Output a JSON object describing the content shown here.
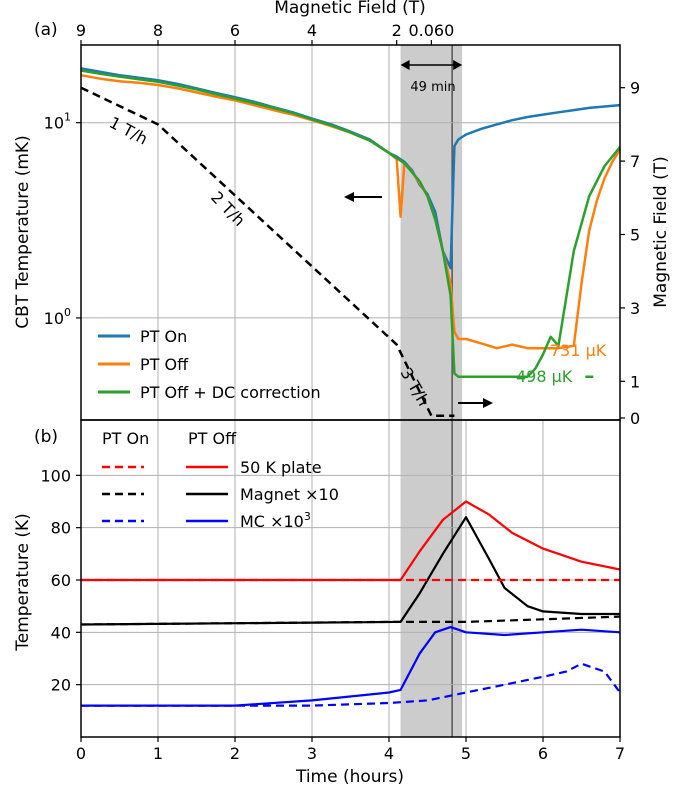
{
  "chart_data": [
    {
      "panel_label": "(a)",
      "type": "line",
      "xlabel": "",
      "ylabel": "CBT Temperature (mK)",
      "ylabel_right": "Magnetic Field (T)",
      "xlabel_top": "Magnetic Field (T)",
      "yscale": "log",
      "xlim": [
        0,
        7
      ],
      "ylim": [
        0.3,
        25
      ],
      "ylim_right": [
        0,
        10
      ],
      "grid": true,
      "legend_position": "lower-left",
      "x_ticks_top": [
        {
          "x": 0.0,
          "label": "9"
        },
        {
          "x": 1.0,
          "label": "8"
        },
        {
          "x": 2.0,
          "label": "6"
        },
        {
          "x": 3.0,
          "label": "4"
        },
        {
          "x": 4.1,
          "label": "2"
        },
        {
          "x": 4.55,
          "label": "0.060"
        }
      ],
      "y_ticks_left": [
        {
          "v": 10,
          "base": "10",
          "exp": "1"
        },
        {
          "v": 1,
          "base": "10",
          "exp": "0"
        }
      ],
      "y_ticks_right": [
        "0",
        "1",
        "3",
        "5",
        "7",
        "9"
      ],
      "series": [
        {
          "name": "PT On",
          "color": "#1f77b4",
          "x": [
            0,
            0.25,
            0.5,
            0.75,
            1.0,
            1.25,
            1.5,
            1.75,
            2.0,
            2.25,
            2.5,
            2.75,
            3.0,
            3.25,
            3.5,
            3.75,
            4.0,
            4.1,
            4.2,
            4.3,
            4.4,
            4.5,
            4.6,
            4.7,
            4.8,
            4.85,
            4.9,
            5.0,
            5.2,
            5.4,
            5.6,
            5.8,
            6.0,
            6.2,
            6.4,
            6.6,
            6.8,
            7.0
          ],
          "y": [
            19,
            18.2,
            17.5,
            17.0,
            16.5,
            15.8,
            15.0,
            14.2,
            13.5,
            12.8,
            12.0,
            11.3,
            10.5,
            9.8,
            9.0,
            8.2,
            7.0,
            6.7,
            6.3,
            5.7,
            4.8,
            4.3,
            3.5,
            2.2,
            1.8,
            7.6,
            8.2,
            8.7,
            9.3,
            9.8,
            10.3,
            10.7,
            11.0,
            11.3,
            11.6,
            11.9,
            12.1,
            12.3
          ]
        },
        {
          "name": "PT Off",
          "color": "#ff7f0e",
          "x": [
            0,
            0.25,
            0.5,
            0.75,
            1.0,
            1.25,
            1.5,
            1.75,
            2.0,
            2.25,
            2.5,
            2.75,
            3.0,
            3.25,
            3.5,
            3.75,
            4.0,
            4.1,
            4.15,
            4.2,
            4.25,
            4.3,
            4.4,
            4.5,
            4.6,
            4.7,
            4.8,
            4.85,
            4.9,
            5.0,
            5.2,
            5.4,
            5.6,
            5.8,
            6.0,
            6.2,
            6.3,
            6.4,
            6.5,
            6.6,
            6.7,
            6.8,
            6.9,
            7.0
          ],
          "y": [
            17.5,
            16.8,
            16.3,
            16.0,
            15.6,
            15.0,
            14.3,
            13.6,
            13.0,
            12.3,
            11.6,
            11.0,
            10.3,
            9.6,
            8.9,
            8.1,
            7.0,
            6.5,
            3.3,
            6.2,
            5.9,
            5.6,
            4.9,
            4.2,
            3.2,
            2.2,
            1.5,
            0.85,
            0.78,
            0.78,
            0.74,
            0.7,
            0.73,
            0.7,
            0.7,
            0.7,
            0.71,
            0.72,
            1.5,
            2.8,
            4.0,
            5.2,
            6.3,
            7.3
          ]
        },
        {
          "name": "PT Off + DC correction",
          "color": "#2ca02c",
          "x": [
            0,
            0.25,
            0.5,
            0.75,
            1.0,
            1.25,
            1.5,
            1.75,
            2.0,
            2.25,
            2.5,
            2.75,
            3.0,
            3.25,
            3.5,
            3.75,
            4.0,
            4.2,
            4.4,
            4.5,
            4.6,
            4.7,
            4.8,
            4.85,
            4.9,
            5.0,
            5.2,
            5.4,
            5.6,
            5.8,
            5.9,
            6.0,
            6.1,
            6.2,
            6.4,
            6.6,
            6.8,
            7.0
          ],
          "y": [
            18.5,
            17.8,
            17.2,
            16.7,
            16.2,
            15.5,
            14.8,
            14.0,
            13.3,
            12.6,
            11.9,
            11.2,
            10.4,
            9.7,
            8.9,
            8.1,
            7.0,
            6.2,
            5.0,
            4.2,
            3.2,
            2.2,
            1.3,
            0.52,
            0.5,
            0.5,
            0.5,
            0.5,
            0.5,
            0.5,
            0.55,
            0.65,
            0.8,
            0.72,
            2.2,
            4.2,
            6.0,
            7.5
          ]
        },
        {
          "name": "Magnetic field",
          "axis": "right",
          "color": "#000000",
          "x": [
            0,
            1.0,
            4.1,
            4.55,
            4.85
          ],
          "y": [
            9,
            8,
            2,
            0.06,
            0.06
          ]
        }
      ],
      "annotations": {
        "ramp_1": "1 T/h",
        "ramp_2": "2 T/h",
        "ramp_3": "3 T/h",
        "duration": "49 min",
        "final_pt_off": "731 µK",
        "final_dc": "498 µK"
      }
    },
    {
      "panel_label": "(b)",
      "type": "line",
      "xlabel": "Time (hours)",
      "ylabel": "Temperature (K)",
      "xlim": [
        0,
        7
      ],
      "ylim": [
        0,
        120
      ],
      "grid": true,
      "x_ticks": [
        "0",
        "1",
        "2",
        "3",
        "4",
        "5",
        "6",
        "7"
      ],
      "y_ticks": [
        "20",
        "40",
        "60",
        "80",
        "100"
      ],
      "legend_header_on": "PT On",
      "legend_header_off": "PT Off",
      "legend_position": "upper-left",
      "series": [
        {
          "name": "50 K plate",
          "color": "#ff0000",
          "dashed": false,
          "x": [
            0,
            4.15,
            4.4,
            4.7,
            5.0,
            5.3,
            5.6,
            6.0,
            6.5,
            7.0
          ],
          "y": [
            60,
            60,
            71,
            83,
            90,
            85,
            78,
            72,
            67,
            64
          ]
        },
        {
          "name": "Magnet ×10",
          "color": "#000000",
          "dashed": false,
          "x": [
            0,
            4.15,
            4.4,
            4.7,
            5.0,
            5.3,
            5.5,
            5.8,
            6.0,
            6.5,
            7.0
          ],
          "y": [
            43,
            44,
            55,
            70,
            84,
            68,
            57,
            50,
            48,
            47,
            47
          ]
        },
        {
          "name": "MC ×10",
          "color": "#0000ff",
          "dashed": false,
          "x": [
            0,
            1,
            2,
            3,
            4,
            4.15,
            4.4,
            4.6,
            4.8,
            5.0,
            5.5,
            6.0,
            6.5,
            7.0
          ],
          "y": [
            12,
            12,
            12,
            14,
            17,
            18,
            32,
            40,
            42,
            40,
            39,
            40,
            41,
            40
          ]
        },
        {
          "name": "50 K plate",
          "color": "#ff0000",
          "dashed": true,
          "x": [
            0,
            7
          ],
          "y": [
            60,
            60
          ]
        },
        {
          "name": "Magnet ×10",
          "color": "#000000",
          "dashed": true,
          "x": [
            0,
            4,
            5,
            6,
            7
          ],
          "y": [
            43,
            44,
            44,
            45,
            46
          ]
        },
        {
          "name": "MC ×10",
          "color": "#0000ff",
          "dashed": true,
          "x": [
            0,
            1,
            2,
            3,
            4,
            4.5,
            5,
            5.5,
            6,
            6.3,
            6.5,
            6.8,
            7.0
          ],
          "y": [
            12,
            12,
            12,
            12,
            13,
            14,
            17,
            20,
            23,
            25,
            28,
            25,
            17
          ]
        }
      ],
      "legend_entries": [
        {
          "label": "50 K plate",
          "color": "#ff0000"
        },
        {
          "label": "Magnet ×10",
          "color": "#000000"
        },
        {
          "label": "MC ×10",
          "sup": "3",
          "color": "#0000ff"
        }
      ]
    }
  ],
  "shaded_interval_hours": [
    4.15,
    4.95
  ],
  "marker_line_hours": 4.82
}
